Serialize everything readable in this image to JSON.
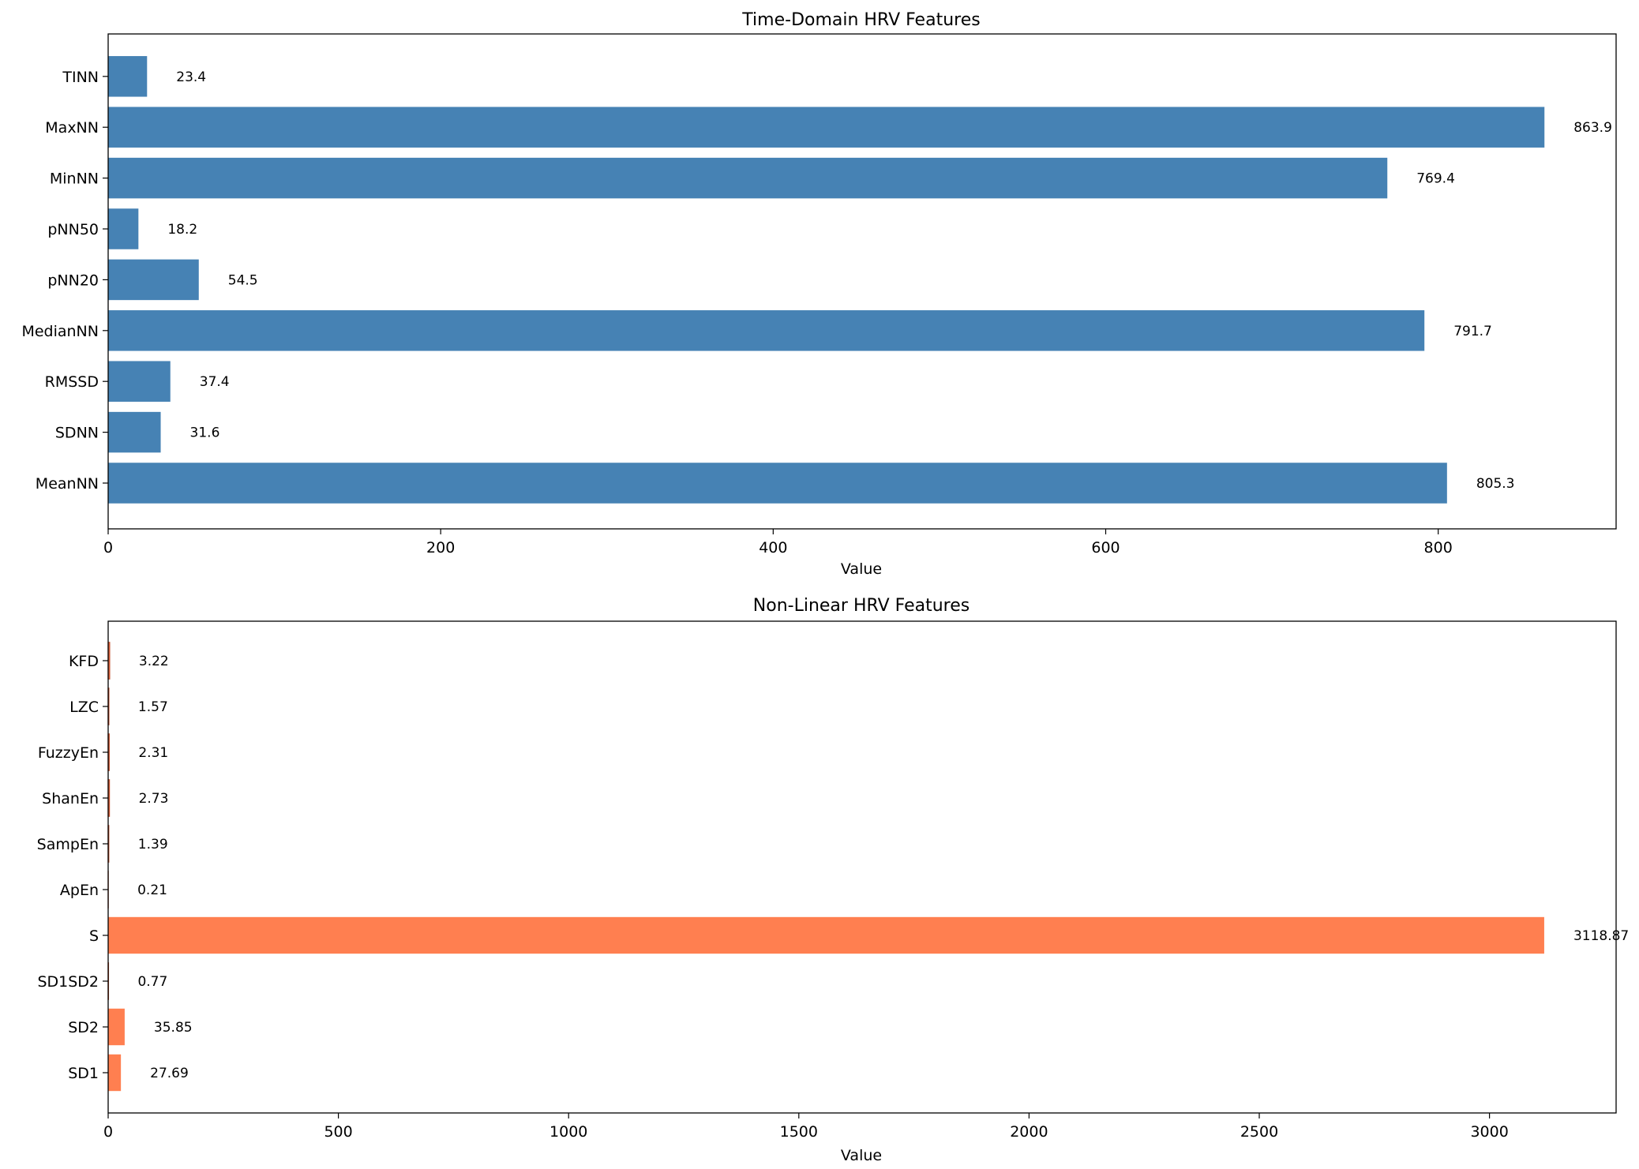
{
  "colors": {
    "time_domain_bar": "#4682b4",
    "nonlinear_bar": "#ff7f50",
    "nonlinear_bar_edge": "#c44e2a"
  },
  "chart_data": [
    {
      "type": "bar",
      "orientation": "horizontal",
      "title": "Time-Domain HRV Features",
      "xlabel": "Value",
      "ylabel": "",
      "xlim": [
        0,
        907
      ],
      "xticks": [
        0,
        200,
        400,
        600,
        800
      ],
      "xtick_labels": [
        "0",
        "200",
        "400",
        "600",
        "800"
      ],
      "categories": [
        "MeanNN",
        "SDNN",
        "RMSSD",
        "MedianNN",
        "pNN20",
        "pNN50",
        "MinNN",
        "MaxNN",
        "TINN"
      ],
      "values": [
        805.3,
        31.6,
        37.4,
        791.7,
        54.5,
        18.2,
        769.4,
        863.9,
        23.4
      ],
      "value_labels": [
        "805.3",
        "31.6",
        "37.4",
        "791.7",
        "54.5",
        "18.2",
        "769.4",
        "863.9",
        "23.4"
      ],
      "grid": false,
      "color_key": "time_domain_bar"
    },
    {
      "type": "bar",
      "orientation": "horizontal",
      "title": "Non-Linear HRV Features",
      "xlabel": "Value",
      "ylabel": "",
      "xlim": [
        0,
        3275
      ],
      "xticks": [
        0,
        500,
        1000,
        1500,
        2000,
        2500,
        3000
      ],
      "xtick_labels": [
        "0",
        "500",
        "1000",
        "1500",
        "2000",
        "2500",
        "3000"
      ],
      "categories": [
        "SD1",
        "SD2",
        "SD1SD2",
        "S",
        "ApEn",
        "SampEn",
        "ShanEn",
        "FuzzyEn",
        "LZC",
        "KFD"
      ],
      "values": [
        27.69,
        35.85,
        0.77,
        3118.87,
        0.21,
        1.39,
        2.73,
        2.31,
        1.57,
        3.22
      ],
      "value_labels": [
        "27.69",
        "35.85",
        "0.77",
        "3118.87",
        "0.21",
        "1.39",
        "2.73",
        "2.31",
        "1.57",
        "3.22"
      ],
      "grid": false,
      "color_key": "nonlinear_bar"
    }
  ]
}
